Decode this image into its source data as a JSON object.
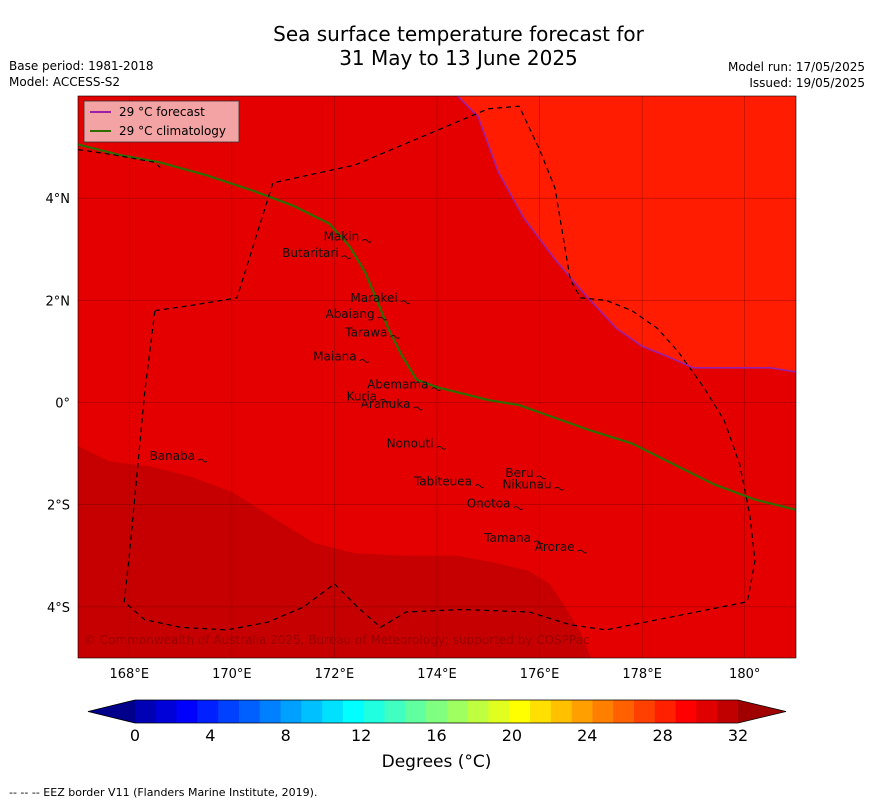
{
  "header": {
    "title_line1": "Sea surface temperature forecast for",
    "title_line2": "31 May to 13 June 2025",
    "base_period": "Base period: 1981-2018",
    "model": "Model: ACCESS-S2",
    "model_run": "Model run: 17/05/2025",
    "issued": "Issued: 19/05/2025"
  },
  "map": {
    "lon_labels": [
      "168°E",
      "170°E",
      "172°E",
      "174°E",
      "176°E",
      "178°E",
      "180°"
    ],
    "lat_labels": [
      "4°N",
      "2°N",
      "0°",
      "2°S",
      "4°S"
    ],
    "lon_values": [
      168,
      170,
      172,
      174,
      176,
      178,
      180
    ],
    "lat_values": [
      4,
      2,
      0,
      -2,
      -4
    ],
    "lon_range": [
      167,
      181
    ],
    "lat_range": [
      -5,
      6
    ],
    "copyright": "© Commonwealth of Australia 2025, Bureau of Meteorology; supported by COSPPac",
    "legend": [
      {
        "label": "29 °C  forecast",
        "color": "#9c1fa8"
      },
      {
        "label": "29 °C  climatology",
        "color": "#2e6d00"
      }
    ],
    "places": [
      {
        "name": "Makin",
        "lon": 172.6,
        "lat": 3.25
      },
      {
        "name": "Butaritari",
        "lon": 172.2,
        "lat": 2.93
      },
      {
        "name": "Marakei",
        "lon": 173.35,
        "lat": 2.05
      },
      {
        "name": "Abaiang",
        "lon": 172.9,
        "lat": 1.73
      },
      {
        "name": "Tarawa",
        "lon": 173.15,
        "lat": 1.37
      },
      {
        "name": "Maiana",
        "lon": 172.55,
        "lat": 0.9
      },
      {
        "name": "Abemama",
        "lon": 173.95,
        "lat": 0.35
      },
      {
        "name": "Kuria",
        "lon": 172.95,
        "lat": 0.12
      },
      {
        "name": "Aranuka",
        "lon": 173.6,
        "lat": -0.03
      },
      {
        "name": "Nonouti",
        "lon": 174.05,
        "lat": -0.8
      },
      {
        "name": "Banaba",
        "lon": 169.4,
        "lat": -1.05
      },
      {
        "name": "Beru",
        "lon": 176.0,
        "lat": -1.38
      },
      {
        "name": "Tabiteuea",
        "lon": 174.8,
        "lat": -1.55
      },
      {
        "name": "Nikunau",
        "lon": 176.35,
        "lat": -1.6
      },
      {
        "name": "Onotoa",
        "lon": 175.55,
        "lat": -1.98
      },
      {
        "name": "Tamana",
        "lon": 175.95,
        "lat": -2.65
      },
      {
        "name": "Arorae",
        "lon": 176.8,
        "lat": -2.83
      }
    ],
    "colors": {
      "zone_main": "#e50000",
      "zone_warm": "#ff1c00",
      "zone_cool": "#c60000",
      "grid": "#5a0000",
      "eez": "#000000"
    }
  },
  "colorbar": {
    "ticks": [
      "0",
      "4",
      "8",
      "12",
      "16",
      "20",
      "24",
      "28",
      "32"
    ],
    "tick_values": [
      0,
      4,
      8,
      12,
      16,
      20,
      24,
      28,
      32
    ],
    "label": "Degrees (°C)",
    "colors": [
      "#00008b",
      "#0000b5",
      "#0000d8",
      "#0000ff",
      "#0020ff",
      "#0040ff",
      "#0060ff",
      "#0080ff",
      "#00a0ff",
      "#00c0ff",
      "#00e0ff",
      "#00ffff",
      "#20ffe0",
      "#40ffc0",
      "#60ffa0",
      "#80ff80",
      "#a0ff60",
      "#c0ff40",
      "#e0ff20",
      "#ffff00",
      "#ffe000",
      "#ffc000",
      "#ffa000",
      "#ff8000",
      "#ff6000",
      "#ff4000",
      "#ff2000",
      "#ff0000",
      "#e00000",
      "#c00000",
      "#a00000"
    ]
  },
  "footer": {
    "eez_note": "--  --  -- EEZ border V11 (Flanders Marine Institute, 2019)."
  }
}
